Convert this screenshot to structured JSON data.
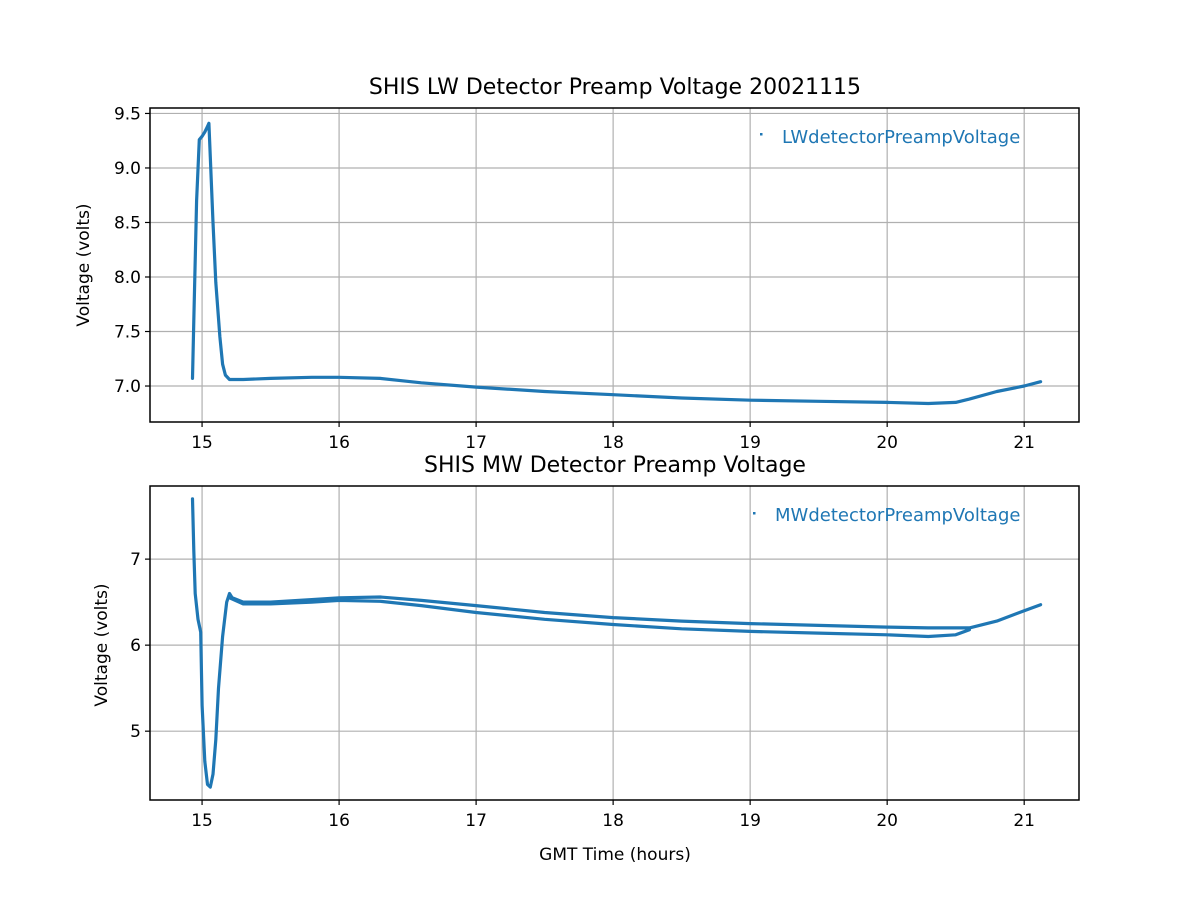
{
  "chart_data": [
    {
      "type": "scatter",
      "title": "SHIS LW Detector Preamp Voltage 20021115",
      "xlabel": "",
      "ylabel": "Voltage (volts)",
      "xlim": [
        14.62,
        21.4
      ],
      "ylim": [
        6.67,
        9.55
      ],
      "xticks": [
        15,
        16,
        17,
        18,
        19,
        20,
        21
      ],
      "yticks": [
        7.0,
        7.5,
        8.0,
        8.5,
        9.0,
        9.5
      ],
      "ytick_labels": [
        "7.0",
        "7.5",
        "8.0",
        "8.5",
        "9.0",
        "9.5"
      ],
      "grid": true,
      "legend_position": "top-right",
      "color": "#1f77b4",
      "series": [
        {
          "name": "LWdetectorPreampVoltage",
          "bands": [
            {
              "x": [
                14.93,
                14.94,
                14.96,
                14.98,
                15.0,
                15.02,
                15.04,
                15.05,
                15.06,
                15.08,
                15.1,
                15.13,
                15.15,
                15.17,
                15.2,
                15.3,
                15.5,
                15.8,
                16.0,
                16.3,
                16.6,
                17.0,
                17.5,
                18.0,
                18.5,
                19.0,
                19.5,
                20.0,
                20.3,
                20.5,
                20.6,
                20.8,
                21.0,
                21.12
              ],
              "y": [
                7.07,
                7.6,
                8.7,
                9.26,
                9.29,
                9.33,
                9.38,
                9.41,
                9.1,
                8.5,
                7.95,
                7.45,
                7.2,
                7.1,
                7.06,
                7.06,
                7.07,
                7.08,
                7.08,
                7.07,
                7.03,
                6.99,
                6.95,
                6.92,
                6.89,
                6.87,
                6.86,
                6.85,
                6.84,
                6.85,
                6.88,
                6.95,
                7.0,
                7.04
              ]
            }
          ]
        }
      ]
    },
    {
      "type": "scatter",
      "title": "SHIS MW Detector Preamp Voltage",
      "xlabel": "GMT Time (hours)",
      "ylabel": "Voltage (volts)",
      "xlim": [
        14.62,
        21.4
      ],
      "ylim": [
        4.2,
        7.85
      ],
      "xticks": [
        15,
        16,
        17,
        18,
        19,
        20,
        21
      ],
      "yticks": [
        5,
        6,
        7
      ],
      "ytick_labels": [
        "5",
        "6",
        "7"
      ],
      "grid": true,
      "legend_position": "top-right",
      "color": "#1f77b4",
      "series": [
        {
          "name": "MWdetectorPreampVoltage",
          "bands": [
            {
              "x": [
                14.93,
                14.94,
                14.95,
                14.97,
                14.99,
                15.0,
                15.02,
                15.04,
                15.06,
                15.08,
                15.1,
                15.12,
                15.15,
                15.18,
                15.2,
                15.22,
                15.3,
                15.5,
                15.8,
                16.0,
                16.3,
                16.6,
                17.0,
                17.5,
                18.0,
                18.5,
                19.0,
                19.5,
                20.0,
                20.3,
                20.5,
                20.6,
                20.8,
                21.0,
                21.12
              ],
              "y": [
                7.7,
                7.1,
                6.6,
                6.3,
                6.15,
                5.3,
                4.65,
                4.38,
                4.35,
                4.5,
                4.9,
                5.5,
                6.1,
                6.5,
                6.6,
                6.55,
                6.5,
                6.5,
                6.53,
                6.55,
                6.56,
                6.52,
                6.46,
                6.38,
                6.32,
                6.28,
                6.25,
                6.23,
                6.21,
                6.2,
                6.2,
                6.2,
                6.28,
                6.4,
                6.47
              ]
            },
            {
              "x": [
                15.2,
                15.3,
                15.5,
                15.8,
                16.0,
                16.3,
                16.6,
                17.0,
                17.5,
                18.0,
                18.5,
                19.0,
                19.5,
                20.0,
                20.3,
                20.5,
                20.6
              ],
              "y": [
                6.55,
                6.48,
                6.48,
                6.5,
                6.52,
                6.51,
                6.46,
                6.38,
                6.3,
                6.24,
                6.19,
                6.16,
                6.14,
                6.12,
                6.1,
                6.12,
                6.18
              ]
            }
          ]
        }
      ]
    }
  ]
}
